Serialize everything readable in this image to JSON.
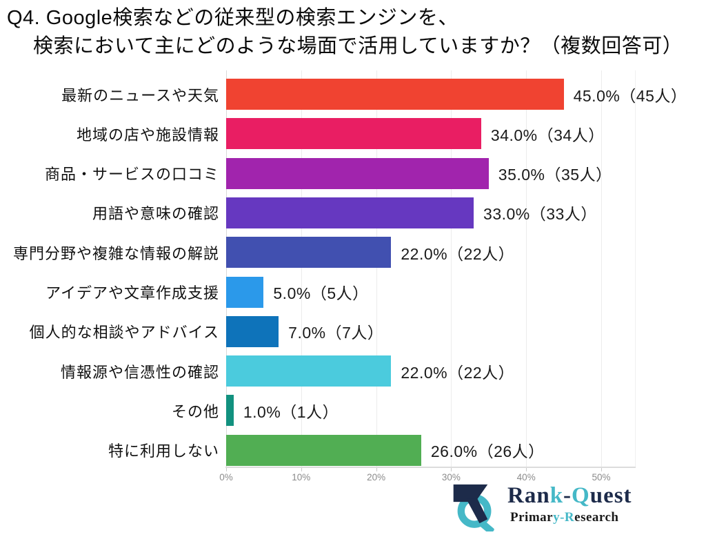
{
  "title": {
    "line1": "Q4. Google検索などの従来型の検索エンジンを、",
    "line2": "検索において主にどのような場面で活用していますか？（複数回答可）"
  },
  "chart_data": {
    "type": "bar",
    "orientation": "horizontal",
    "title": "Q4. Google検索などの従来型の検索エンジンを、検索において主にどのような場面で活用していますか？（複数回答可）",
    "categories": [
      "最新のニュースや天気",
      "地域の店や施設情報",
      "商品・サービスの口コミ",
      "用語や意味の確認",
      "専門分野や複雑な情報の解説",
      "アイデアや文章作成支援",
      "個人的な相談やアドバイス",
      "情報源や信憑性の確認",
      "その他",
      "特に利用しない"
    ],
    "values": [
      45.0,
      34.0,
      35.0,
      33.0,
      22.0,
      5.0,
      7.0,
      22.0,
      1.0,
      26.0
    ],
    "counts": [
      45,
      34,
      35,
      33,
      22,
      5,
      7,
      22,
      1,
      26
    ],
    "value_labels": [
      "45.0%（45人）",
      "34.0%（34人）",
      "35.0%（35人）",
      "33.0%（33人）",
      "22.0%（22人）",
      "5.0%（5人）",
      "7.0%（7人）",
      "22.0%（22人）",
      "1.0%（1人）",
      "26.0%（26人）"
    ],
    "bar_colors": [
      "#f04331",
      "#e91e63",
      "#a124ad",
      "#6638c0",
      "#4150b0",
      "#2b99ea",
      "#0e73ba",
      "#4bcbdd",
      "#12917f",
      "#51ae53"
    ],
    "x_ticks": [
      "0%",
      "10%",
      "20%",
      "30%",
      "40%",
      "50%"
    ],
    "xlim": [
      0,
      54.5
    ],
    "xlabel": "",
    "ylabel": "",
    "grid": true,
    "legend": false
  },
  "logo": {
    "name_segments": [
      {
        "text": "Ran",
        "color": "#1d2b4a"
      },
      {
        "text": "k",
        "color": "#45b8c7"
      },
      {
        "text": "-",
        "color": "#1d2b4a"
      },
      {
        "text": "Q",
        "color": "#45b8c7"
      },
      {
        "text": "uest",
        "color": "#1d2b4a"
      }
    ],
    "subtitle_segments": [
      {
        "text": "Primar",
        "color": "#1a1a1a"
      },
      {
        "text": "y-R",
        "color": "#45b8c7"
      },
      {
        "text": "esearch",
        "color": "#1a1a1a"
      }
    ],
    "colors": {
      "navy": "#1d2b4a",
      "teal": "#45b8c7"
    }
  }
}
